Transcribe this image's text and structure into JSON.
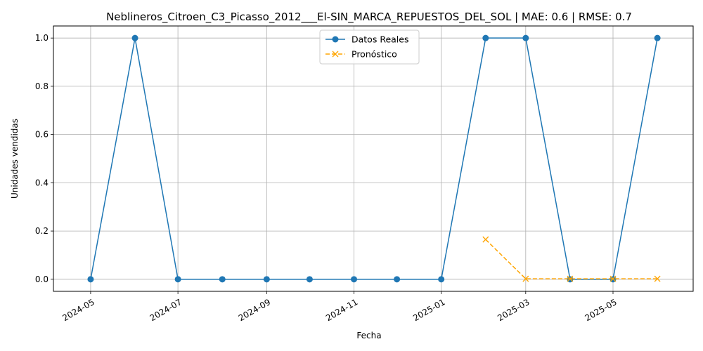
{
  "chart_data": {
    "type": "line",
    "title": "Neblineros_Citroen_C3_Picasso_2012___El-SIN_MARCA_REPUESTOS_DEL_SOL | MAE: 0.6 | RMSE: 0.7",
    "xlabel": "Fecha",
    "ylabel": "Unidades vendidas",
    "xlim": [
      "2024-04-05",
      "2025-06-26"
    ],
    "ylim": [
      -0.05,
      1.05
    ],
    "x_ticks": [
      "2024-05",
      "2024-07",
      "2024-09",
      "2024-11",
      "2025-01",
      "2025-03",
      "2025-05"
    ],
    "y_ticks": [
      "0.0",
      "0.2",
      "0.4",
      "0.6",
      "0.8",
      "1.0"
    ],
    "grid": true,
    "legend_position": "top-center",
    "series": [
      {
        "name": "Datos Reales",
        "color": "#1f77b4",
        "style": "solid",
        "marker": "circle",
        "x": [
          "2024-05-01",
          "2024-06-01",
          "2024-07-01",
          "2024-08-01",
          "2024-09-01",
          "2024-10-01",
          "2024-11-01",
          "2024-12-01",
          "2025-01-01",
          "2025-02-01",
          "2025-03-01",
          "2025-04-01",
          "2025-05-01",
          "2025-06-01"
        ],
        "values": [
          0,
          1,
          0,
          0,
          0,
          0,
          0,
          0,
          0,
          1,
          1,
          0,
          0,
          1
        ]
      },
      {
        "name": "Pronóstico",
        "color": "#ffa500",
        "style": "dashed",
        "marker": "x",
        "x": [
          "2025-02-01",
          "2025-03-01",
          "2025-04-01",
          "2025-05-01",
          "2025-06-01"
        ],
        "values": [
          0.165,
          0.002,
          0.002,
          0.002,
          0.002
        ]
      }
    ]
  }
}
